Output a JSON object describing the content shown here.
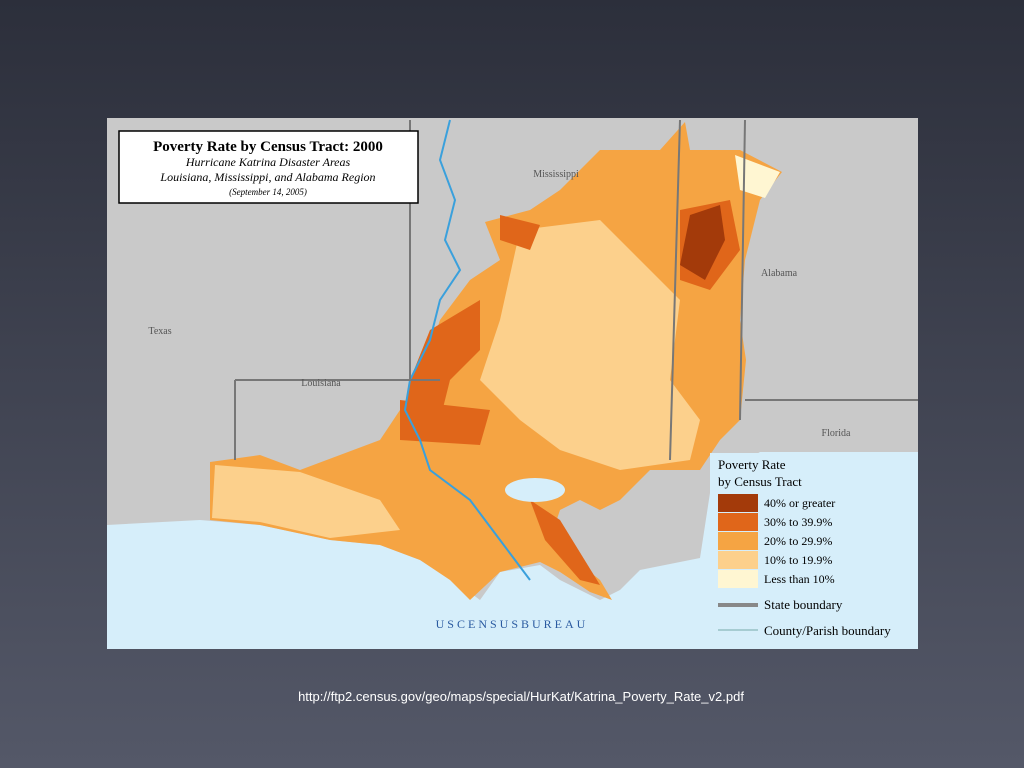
{
  "map": {
    "title": "Poverty Rate by Census Tract: 2000",
    "subtitle_lines": [
      "Hurricane Katrina Disaster Areas",
      "Louisiana, Mississippi, and Alabama Region"
    ],
    "date": "(September 14, 2005)",
    "state_labels": [
      "Mississippi",
      "Texas",
      "Louisiana",
      "Alabama",
      "Florida"
    ],
    "agency": "USCENSUSBUREAU"
  },
  "legend": {
    "title_lines": [
      "Poverty Rate",
      "by Census Tract"
    ],
    "items": [
      {
        "label": "40% or greater",
        "color": "#a33a0a"
      },
      {
        "label": "30% to 39.9%",
        "color": "#e0661a"
      },
      {
        "label": "20% to 29.9%",
        "color": "#f5a443"
      },
      {
        "label": "10% to 19.9%",
        "color": "#fcd08c"
      },
      {
        "label": "Less than 10%",
        "color": "#fff6d2"
      }
    ],
    "lines": [
      "State boundary",
      "County/Parish boundary"
    ]
  },
  "caption": "http://ftp2.census.gov/geo/maps/special/HurKat/Katrina_Poverty_Rate_v2.pdf"
}
